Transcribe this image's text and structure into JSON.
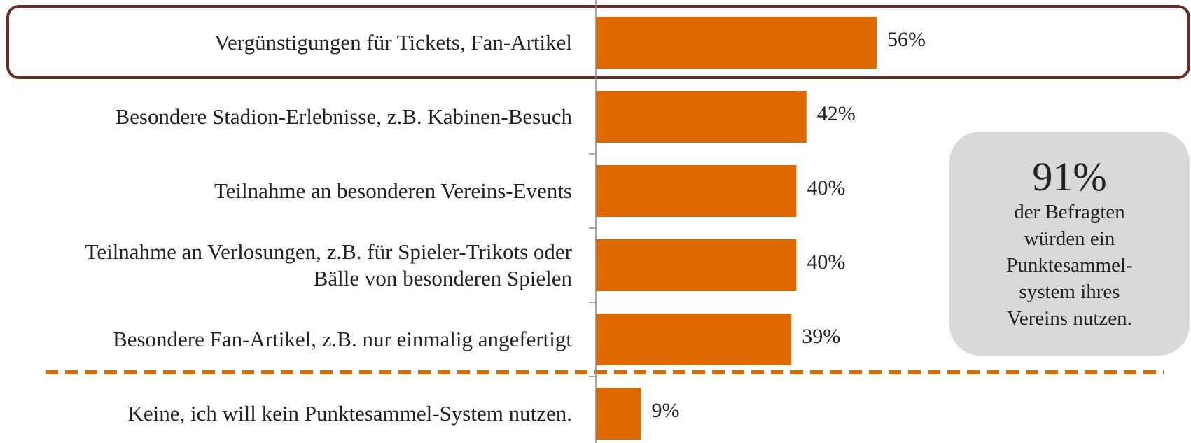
{
  "chart_data": {
    "type": "bar",
    "orientation": "horizontal",
    "categories": [
      "Vergünstigungen für Tickets, Fan-Artikel",
      "Besondere Stadion-Erlebnisse, z.B. Kabinen-Besuch",
      "Teilnahme an besonderen Vereins-Events",
      "Teilnahme an Verlosungen, z.B. für Spieler-Trikots oder\nBälle von besonderen Spielen",
      "Besondere Fan-Artikel, z.B. nur einmalig angefertigt",
      "Keine, ich will kein Punktesammel-System nutzen."
    ],
    "values": [
      56,
      42,
      40,
      40,
      39,
      9
    ],
    "value_labels": [
      "56%",
      "42%",
      "40%",
      "40%",
      "39%",
      "9%"
    ],
    "color": "#df6b00",
    "xlim": [
      0,
      100
    ],
    "annotation": {
      "headline": "91%",
      "text": "der Befragten\nwürden ein\nPunktesammel-\nsystem ihres\nVereins nutzen."
    }
  }
}
